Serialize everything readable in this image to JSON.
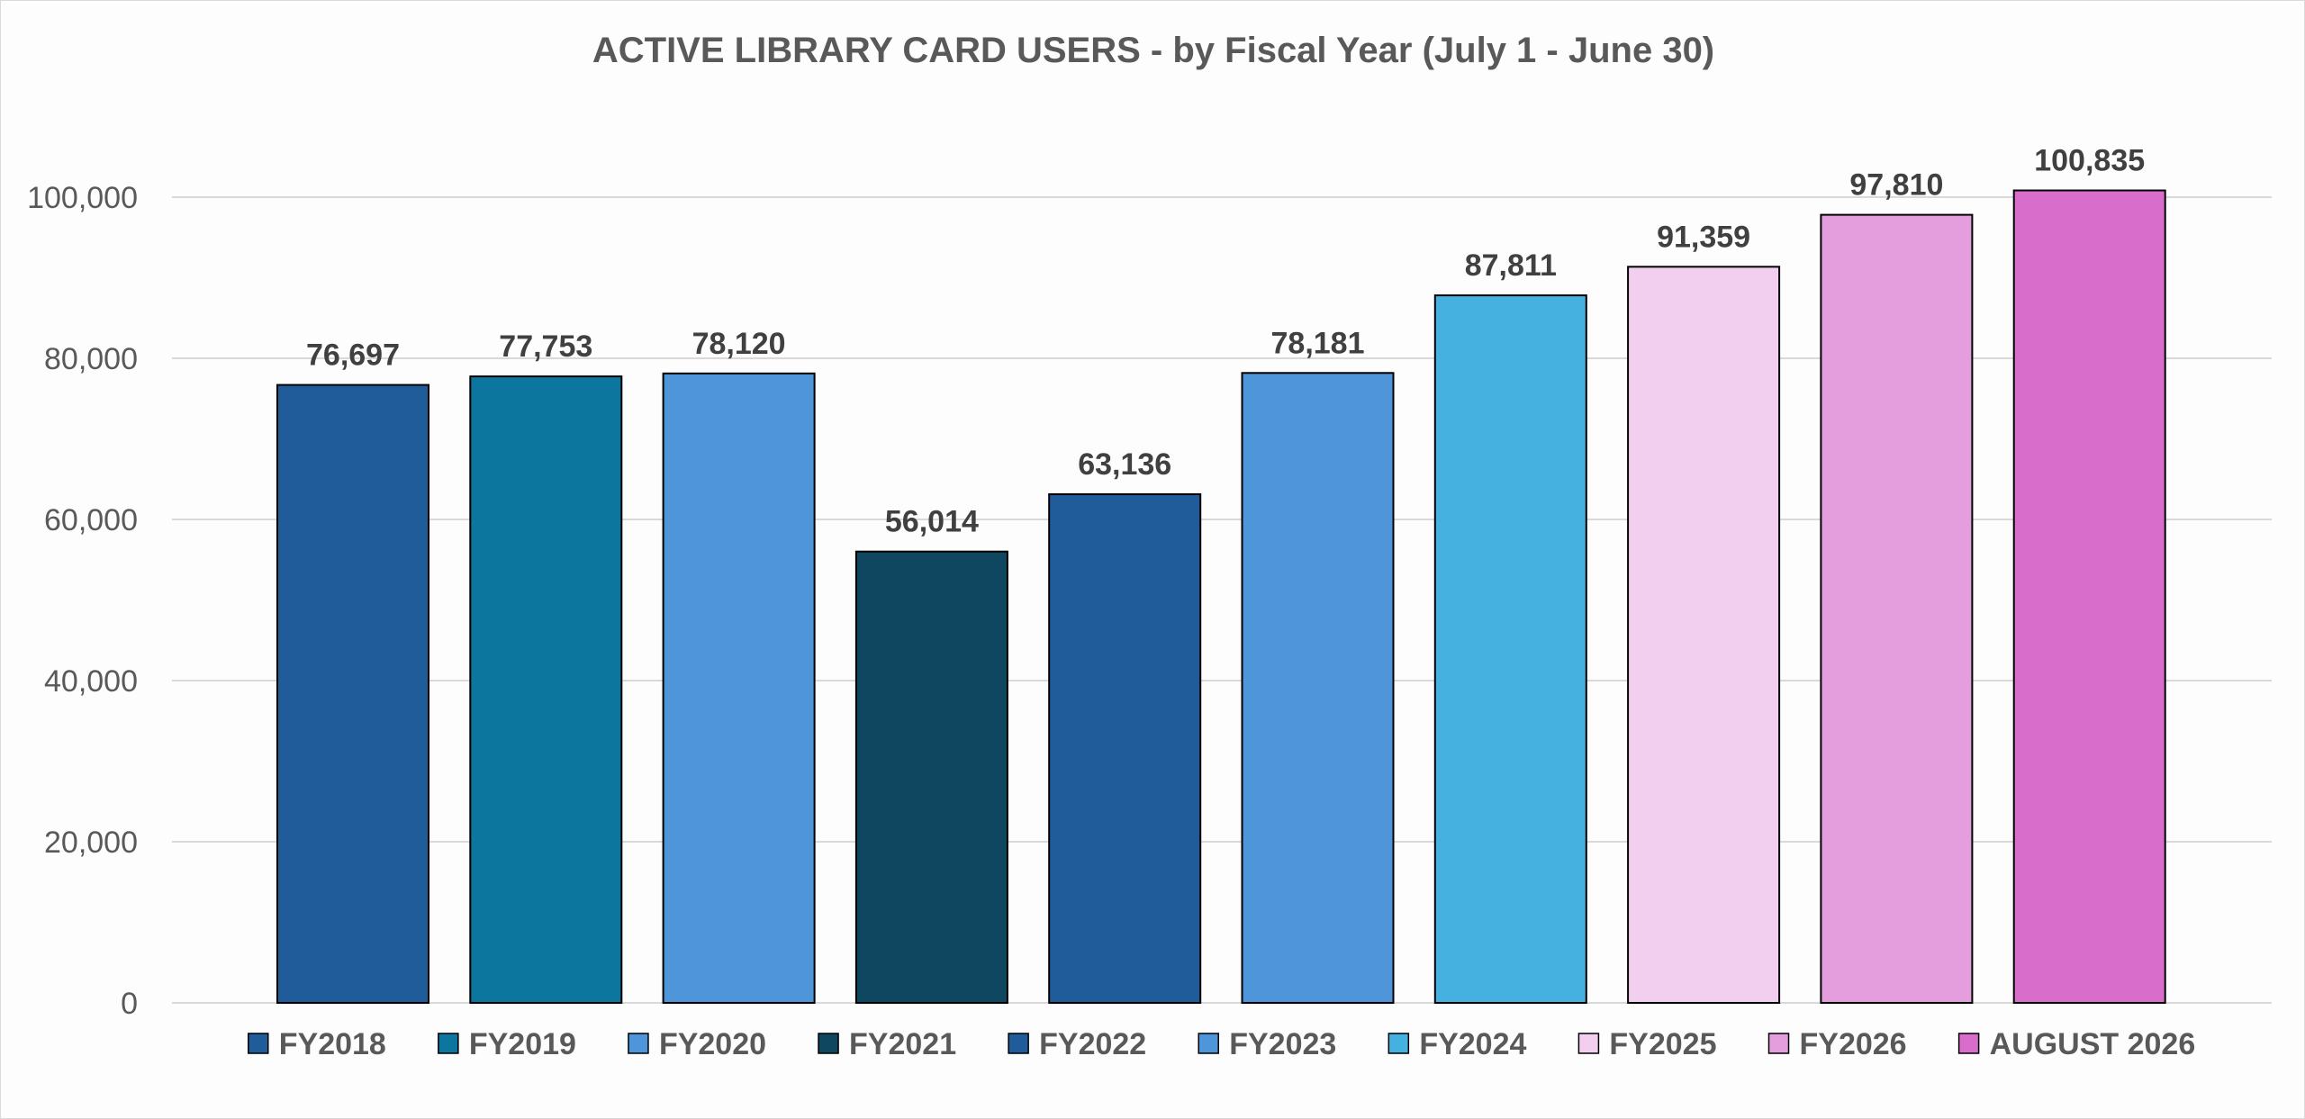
{
  "chart_data": {
    "type": "bar",
    "title": "ACTIVE LIBRARY CARD USERS  - by Fiscal Year (July 1 - June 30)",
    "xlabel": "",
    "ylabel": "",
    "categories": [
      "FY2018",
      "FY2019",
      "FY2020",
      "FY2021",
      "FY2022",
      "FY2023",
      "FY2024",
      "FY2025",
      "FY2026",
      "AUGUST 2026"
    ],
    "values": [
      76697,
      77753,
      78120,
      56014,
      63136,
      78181,
      87811,
      91359,
      97810,
      100835
    ],
    "value_labels": [
      "76,697",
      "77,753",
      "78,120",
      "56,014",
      "63,136",
      "78,181",
      "87,811",
      "91,359",
      "97,810",
      "100,835"
    ],
    "colors": [
      "#205C99",
      "#0C769E",
      "#4E95D9",
      "#0F4761",
      "#205C99",
      "#4E95D9",
      "#45B1E1",
      "#F2CFEE",
      "#E49EDD",
      "#D86DCB"
    ],
    "ylim": [
      0,
      100000
    ],
    "yticks": [
      0,
      20000,
      40000,
      60000,
      80000,
      100000
    ],
    "ytick_labels": [
      "0",
      "20,000",
      "40,000",
      "60,000",
      "80,000",
      "100,000"
    ],
    "grid": true,
    "legend_position": "bottom"
  }
}
